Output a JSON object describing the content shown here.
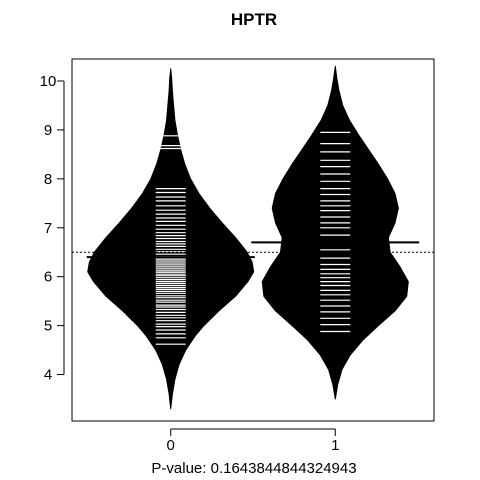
{
  "chart_data": {
    "type": "beanplot",
    "title": "HPTR",
    "xlabel": "P-value: 0.1643844844324943",
    "ylabel": "",
    "ylim": [
      3.05,
      10.45
    ],
    "xlim": [
      -0.6,
      1.6
    ],
    "yticks": [
      4,
      5,
      6,
      7,
      8,
      9,
      10
    ],
    "categories": [
      "0",
      "1"
    ],
    "overall_mean": 6.5,
    "groups": [
      {
        "name": "0",
        "mean": 6.4,
        "min": 3.3,
        "max": 10.25,
        "density": [
          [
            3.3,
            0.0
          ],
          [
            3.6,
            0.02
          ],
          [
            3.9,
            0.05
          ],
          [
            4.2,
            0.1
          ],
          [
            4.5,
            0.18
          ],
          [
            4.8,
            0.3
          ],
          [
            5.0,
            0.4
          ],
          [
            5.3,
            0.58
          ],
          [
            5.6,
            0.78
          ],
          [
            5.9,
            0.93
          ],
          [
            6.1,
            1.0
          ],
          [
            6.3,
            0.98
          ],
          [
            6.5,
            0.92
          ],
          [
            6.8,
            0.78
          ],
          [
            7.1,
            0.62
          ],
          [
            7.4,
            0.47
          ],
          [
            7.7,
            0.34
          ],
          [
            8.0,
            0.24
          ],
          [
            8.3,
            0.17
          ],
          [
            8.6,
            0.12
          ],
          [
            8.9,
            0.08
          ],
          [
            9.2,
            0.05
          ],
          [
            9.5,
            0.035
          ],
          [
            9.8,
            0.02
          ],
          [
            10.05,
            0.012
          ],
          [
            10.25,
            0.0
          ]
        ],
        "observations": [
          4.62,
          4.75,
          4.83,
          4.91,
          4.98,
          5.03,
          5.1,
          5.16,
          5.21,
          5.27,
          5.33,
          5.38,
          5.42,
          5.48,
          5.52,
          5.57,
          5.61,
          5.66,
          5.7,
          5.74,
          5.78,
          5.82,
          5.86,
          5.9,
          5.94,
          5.98,
          6.02,
          6.05,
          6.09,
          6.12,
          6.16,
          6.2,
          6.24,
          6.28,
          6.32,
          6.36,
          6.41,
          6.46,
          6.51,
          6.56,
          6.62,
          6.67,
          6.72,
          6.78,
          6.84,
          6.9,
          6.97,
          7.05,
          7.13,
          7.2,
          7.28,
          7.36,
          7.45,
          7.55,
          7.63,
          7.72,
          7.8,
          8.62,
          8.68,
          8.88
        ]
      },
      {
        "name": "1",
        "mean": 6.7,
        "min": 3.5,
        "max": 10.3,
        "density": [
          [
            3.5,
            0.0
          ],
          [
            3.8,
            0.03
          ],
          [
            4.1,
            0.08
          ],
          [
            4.4,
            0.18
          ],
          [
            4.7,
            0.33
          ],
          [
            5.0,
            0.52
          ],
          [
            5.3,
            0.72
          ],
          [
            5.6,
            0.86
          ],
          [
            5.9,
            0.88
          ],
          [
            6.2,
            0.78
          ],
          [
            6.5,
            0.66
          ],
          [
            6.8,
            0.64
          ],
          [
            7.1,
            0.72
          ],
          [
            7.4,
            0.76
          ],
          [
            7.7,
            0.72
          ],
          [
            8.0,
            0.63
          ],
          [
            8.3,
            0.52
          ],
          [
            8.6,
            0.4
          ],
          [
            8.9,
            0.28
          ],
          [
            9.2,
            0.17
          ],
          [
            9.5,
            0.09
          ],
          [
            9.8,
            0.045
          ],
          [
            10.05,
            0.02
          ],
          [
            10.3,
            0.0
          ]
        ],
        "observations": [
          4.88,
          5.02,
          5.15,
          5.28,
          5.4,
          5.52,
          5.63,
          5.72,
          5.82,
          5.9,
          5.98,
          6.06,
          6.15,
          6.25,
          6.38,
          6.55,
          6.7,
          6.85,
          7.0,
          7.1,
          7.22,
          7.35,
          7.45,
          7.55,
          7.68,
          7.8,
          7.95,
          8.1,
          8.25,
          8.38,
          8.55,
          8.72,
          8.95
        ]
      }
    ]
  }
}
